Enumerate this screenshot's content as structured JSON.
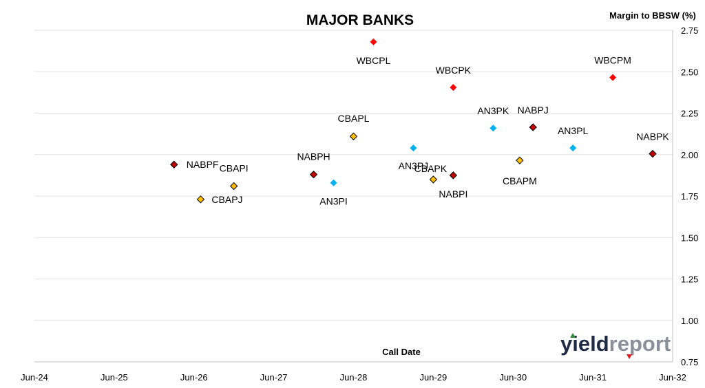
{
  "chart_data": {
    "type": "scatter",
    "title": "MAJOR BANKS",
    "ylabel": "Margin to BBSW (%)",
    "xlabel": "Call Date",
    "x_ticks": [
      "Jun-24",
      "Jun-25",
      "Jun-26",
      "Jun-27",
      "Jun-28",
      "Jun-29",
      "Jun-30",
      "Jun-31",
      "Jun-32"
    ],
    "y_ticks": [
      "0.75",
      "1.00",
      "1.25",
      "1.50",
      "1.75",
      "2.00",
      "2.25",
      "2.50",
      "2.75"
    ],
    "ylim": [
      0.75,
      2.75
    ],
    "xlim": [
      "Jun-24",
      "Jun-32"
    ],
    "grid": true,
    "legend": "none",
    "colors": {
      "WBC": "#ff0000",
      "NAB": "#c00000",
      "CBA": "#ffc000",
      "ANZ": "#00b0f0"
    },
    "points": [
      {
        "label": "NABPF",
        "x": "Mar-26",
        "y": 1.94,
        "group": "NAB"
      },
      {
        "label": "CBAPJ",
        "x": "Jul-26",
        "y": 1.73,
        "group": "CBA"
      },
      {
        "label": "CBAPI",
        "x": "Dec-26",
        "y": 1.81,
        "group": "CBA"
      },
      {
        "label": "NABPH",
        "x": "Dec-27",
        "y": 1.88,
        "group": "NAB"
      },
      {
        "label": "AN3PI",
        "x": "Mar-28",
        "y": 1.83,
        "group": "ANZ"
      },
      {
        "label": "CBAPL",
        "x": "Jun-28",
        "y": 2.11,
        "group": "CBA"
      },
      {
        "label": "WBCPL",
        "x": "Sep-28",
        "y": 2.68,
        "group": "WBC"
      },
      {
        "label": "AN3PJ",
        "x": "Mar-29",
        "y": 2.04,
        "group": "ANZ"
      },
      {
        "label": "CBAPK",
        "x": "Jun-29",
        "y": 1.85,
        "group": "CBA"
      },
      {
        "label": "NABPI",
        "x": "Sep-29",
        "y": 1.875,
        "group": "NAB"
      },
      {
        "label": "WBCPK",
        "x": "Sep-29",
        "y": 2.405,
        "group": "WBC"
      },
      {
        "label": "AN3PK",
        "x": "Mar-30",
        "y": 2.16,
        "group": "ANZ"
      },
      {
        "label": "CBAPM",
        "x": "Jul-30",
        "y": 1.965,
        "group": "CBA"
      },
      {
        "label": "NABPJ",
        "x": "Sep-30",
        "y": 2.165,
        "group": "NAB"
      },
      {
        "label": "AN3PL",
        "x": "Mar-31",
        "y": 2.04,
        "group": "ANZ"
      },
      {
        "label": "WBCPM",
        "x": "Sep-31",
        "y": 2.465,
        "group": "WBC"
      },
      {
        "label": "NABPK",
        "x": "Mar-32",
        "y": 2.005,
        "group": "NAB"
      }
    ]
  },
  "logo": {
    "text_a": "yield",
    "text_b": "report"
  }
}
